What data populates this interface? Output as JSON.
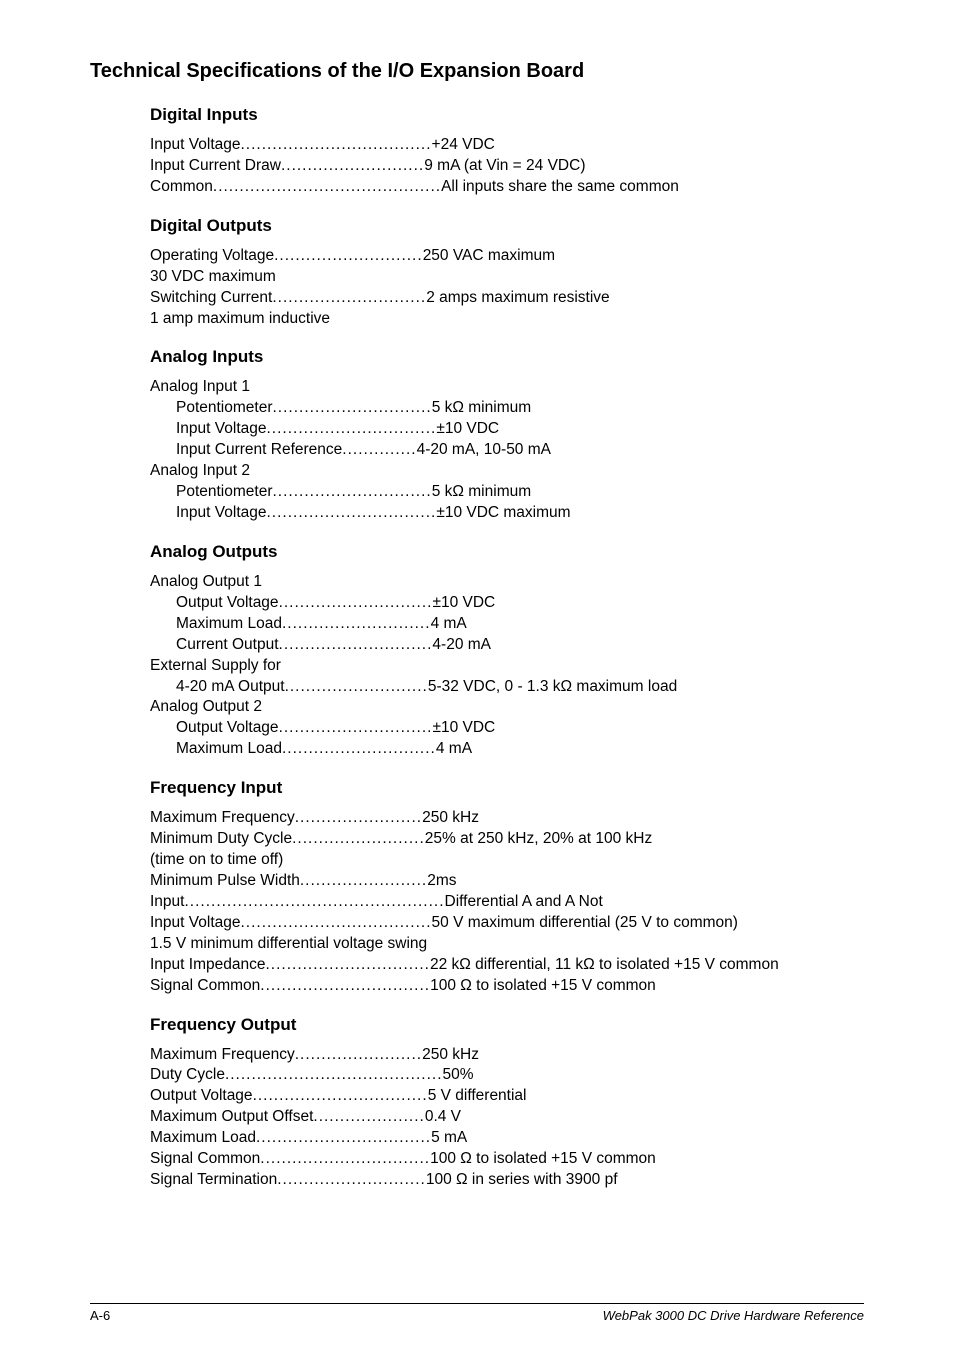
{
  "title": "Technical Specifications of the I/O Expansion Board",
  "sections": {
    "digital_inputs": {
      "heading": "Digital Inputs",
      "lines": [
        {
          "label": "Input Voltage ",
          "dots": "....................................",
          "value": " +24 VDC"
        },
        {
          "label": "Input Current Draw ",
          "dots": "...........................",
          "value": " 9 mA (at Vin = 24 VDC)"
        },
        {
          "label": "Common ",
          "dots": "...........................................",
          "value": " All inputs share the same common"
        }
      ]
    },
    "digital_outputs": {
      "heading": "Digital Outputs",
      "lines": [
        {
          "label": "Operating Voltage ",
          "dots": "............................",
          "value": " 250 VAC maximum"
        },
        {
          "cont": "                                                 30 VDC maximum"
        },
        {
          "label": "Switching Current ",
          "dots": ".............................",
          "value": " 2 amps maximum resistive"
        },
        {
          "cont": "                                                 1 amp maximum inductive"
        }
      ]
    },
    "analog_inputs": {
      "heading": "Analog Inputs",
      "lines": [
        {
          "label": "Analog Input 1",
          "dots": "",
          "value": ""
        },
        {
          "sub": true,
          "label": "Potentiometer ",
          "dots": "..............................",
          "value": " 5 kΩ minimum"
        },
        {
          "sub": true,
          "label": "Input Voltage ",
          "dots": "................................",
          "value": " ±10 VDC"
        },
        {
          "sub": true,
          "label": "Input Current Reference ",
          "dots": "..............",
          "value": " 4-20 mA, 10-50 mA"
        },
        {
          "label": "Analog Input 2",
          "dots": "",
          "value": ""
        },
        {
          "sub": true,
          "label": "Potentiometer ",
          "dots": "..............................",
          "value": " 5 kΩ minimum"
        },
        {
          "sub": true,
          "label": "Input Voltage ",
          "dots": "................................",
          "value": " ±10 VDC maximum"
        }
      ]
    },
    "analog_outputs": {
      "heading": "Analog Outputs",
      "lines": [
        {
          "label": "Analog Output 1",
          "dots": "",
          "value": ""
        },
        {
          "sub": true,
          "label": "Output Voltage ",
          "dots": ".............................",
          "value": " ±10 VDC"
        },
        {
          "sub": true,
          "label": "Maximum Load ",
          "dots": "............................",
          "value": " 4 mA"
        },
        {
          "sub": true,
          "label": "Current Output ",
          "dots": ".............................",
          "value": " 4-20 mA"
        },
        {
          "label": "External Supply for",
          "dots": "",
          "value": ""
        },
        {
          "sub": true,
          "label": "4-20 mA Output ",
          "dots": "...........................",
          "value": " 5-32 VDC, 0 - 1.3 kΩ maximum load"
        },
        {
          "label": "Analog Output 2",
          "dots": "",
          "value": ""
        },
        {
          "sub": true,
          "label": "Output Voltage ",
          "dots": ".............................",
          "value": " ±10 VDC"
        },
        {
          "sub": true,
          "label": "Maximum Load ",
          "dots": ".............................",
          "value": " 4 mA"
        }
      ]
    },
    "frequency_input": {
      "heading": "Frequency Input",
      "lines": [
        {
          "label": "Maximum Frequency ",
          "dots": "........................",
          "value": " 250 kHz"
        },
        {
          "label": "Minimum Duty Cycle ",
          "dots": ".........................",
          "value": " 25% at 250 kHz, 20% at 100 kHz"
        },
        {
          "label": "(time on to time off)",
          "dots": "",
          "value": ""
        },
        {
          "label": "Minimum Pulse Width ",
          "dots": "........................",
          "value": " 2ms"
        },
        {
          "label": "Input ",
          "dots": ".................................................",
          "value": " Differential A and A Not"
        },
        {
          "label": "Input Voltage ",
          "dots": "....................................",
          "value": " 50 V maximum differential (25 V to common)"
        },
        {
          "cont": "                                                 1.5 V minimum differential voltage swing"
        },
        {
          "label": "Input Impedance ",
          "dots": "...............................",
          "value": " 22 kΩ differential, 11 kΩ to isolated +15 V common"
        },
        {
          "label": "Signal Common ",
          "dots": "................................",
          "value": " 100 Ω to isolated +15 V common"
        }
      ]
    },
    "frequency_output": {
      "heading": "Frequency Output",
      "lines": [
        {
          "label": "Maximum Frequency ",
          "dots": "........................",
          "value": " 250 kHz"
        },
        {
          "label": "Duty Cycle ",
          "dots": ".........................................",
          "value": " 50%"
        },
        {
          "label": "Output Voltage ",
          "dots": ".................................",
          "value": " 5 V differential"
        },
        {
          "label": "Maximum Output Offset ",
          "dots": ".....................",
          "value": " 0.4 V"
        },
        {
          "label": "Maximum Load ",
          "dots": ".................................",
          "value": " 5 mA"
        },
        {
          "label": "Signal Common ",
          "dots": "................................",
          "value": " 100 Ω to isolated +15 V common"
        },
        {
          "label": "Signal Termination ",
          "dots": "............................",
          "value": " 100 Ω in series with 3900 pf"
        }
      ]
    }
  },
  "footer": {
    "left": "A-6",
    "right": "WebPak 3000 DC Drive Hardware Reference"
  }
}
